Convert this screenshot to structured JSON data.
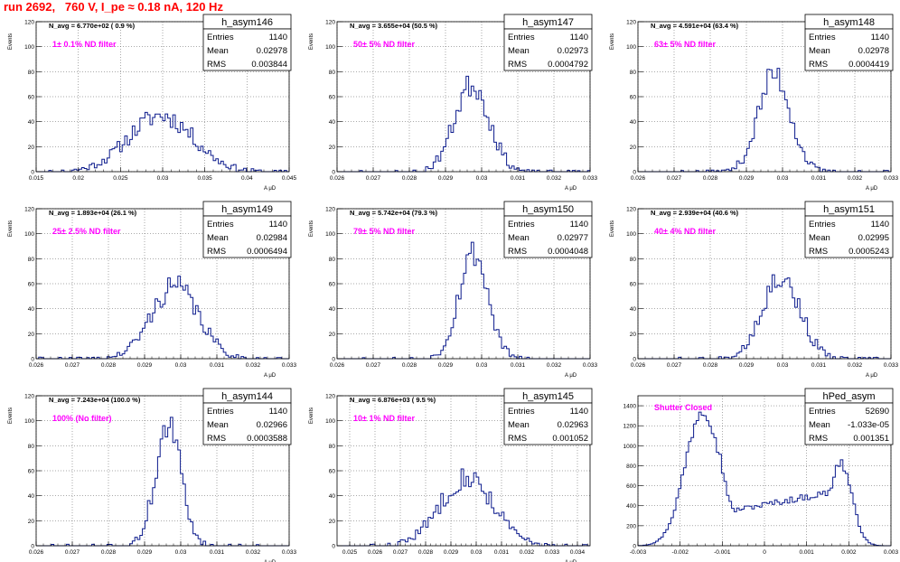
{
  "page_title": "run 2692,   760 V, I_pe ≈ 0.18 nA, 120 Hz",
  "colors": {
    "histogram": "#0b1a8c",
    "annotation": "#ff00ff",
    "grid": "#000000"
  },
  "chart_data": [
    {
      "type": "histogram",
      "title": "h_asym146",
      "ylabel": "Events",
      "xlabel": "A μD",
      "stats": {
        "Entries": "1140",
        "Mean": "0.02978",
        "RMS": "0.003844"
      },
      "navg_label": "N_avg = 6.770e+02 ( 0.9 %)",
      "filter_label": "1± 0.1% ND filter",
      "xlim": [
        0.015,
        0.045
      ],
      "ylim": [
        0,
        120
      ],
      "xticks": [
        "0.015",
        "0.02",
        "0.025",
        "0.03",
        "0.035",
        "0.04",
        "0.045"
      ],
      "yticks": [
        "0",
        "20",
        "40",
        "60",
        "80",
        "100",
        "120"
      ],
      "mean": 0.02978,
      "rms": 0.003844,
      "peak": 45,
      "shape": "gauss",
      "seed": 11
    },
    {
      "type": "histogram",
      "title": "h_asym147",
      "ylabel": "Events",
      "xlabel": "A μD",
      "stats": {
        "Entries": "1140",
        "Mean": "0.02973",
        "RMS": "0.0004792"
      },
      "navg_label": "N_avg = 3.655e+04 (50.5 %)",
      "filter_label": "50± 5% ND filter",
      "xlim": [
        0.026,
        0.033
      ],
      "ylim": [
        0,
        120
      ],
      "xticks": [
        "0.026",
        "0.027",
        "0.028",
        "0.029",
        "0.03",
        "0.031",
        "0.032",
        "0.033"
      ],
      "yticks": [
        "0",
        "20",
        "40",
        "60",
        "80",
        "100",
        "120"
      ],
      "mean": 0.02973,
      "rms": 0.0004792,
      "peak": 70,
      "shape": "gauss",
      "seed": 23
    },
    {
      "type": "histogram",
      "title": "h_asym148",
      "ylabel": "Events",
      "xlabel": "A μD",
      "stats": {
        "Entries": "1140",
        "Mean": "0.02978",
        "RMS": "0.0004419"
      },
      "navg_label": "N_avg = 4.591e+04 (63.4 %)",
      "filter_label": "63± 5% ND filter",
      "xlim": [
        0.026,
        0.033
      ],
      "ylim": [
        0,
        120
      ],
      "xticks": [
        "0.026",
        "0.027",
        "0.028",
        "0.029",
        "0.03",
        "0.031",
        "0.032",
        "0.033"
      ],
      "yticks": [
        "0",
        "20",
        "40",
        "60",
        "80",
        "100",
        "120"
      ],
      "mean": 0.02978,
      "rms": 0.0004419,
      "peak": 78,
      "shape": "gauss",
      "seed": 37
    },
    {
      "type": "histogram",
      "title": "h_asym149",
      "ylabel": "Events",
      "xlabel": "A μD",
      "stats": {
        "Entries": "1140",
        "Mean": "0.02984",
        "RMS": "0.0006494"
      },
      "navg_label": "N_avg = 1.893e+04 (26.1 %)",
      "filter_label": "25± 2.5% ND filter",
      "xlim": [
        0.026,
        0.033
      ],
      "ylim": [
        0,
        120
      ],
      "xticks": [
        "0.026",
        "0.027",
        "0.028",
        "0.029",
        "0.03",
        "0.031",
        "0.032",
        "0.033"
      ],
      "yticks": [
        "0",
        "20",
        "40",
        "60",
        "80",
        "100",
        "120"
      ],
      "mean": 0.02984,
      "rms": 0.0006494,
      "peak": 58,
      "shape": "gauss",
      "seed": 41
    },
    {
      "type": "histogram",
      "title": "h_asym150",
      "ylabel": "Events",
      "xlabel": "A μD",
      "stats": {
        "Entries": "1140",
        "Mean": "0.02977",
        "RMS": "0.0004048"
      },
      "navg_label": "N_avg = 5.742e+04 (79.3 %)",
      "filter_label": "79± 5% ND filter",
      "xlim": [
        0.026,
        0.033
      ],
      "ylim": [
        0,
        120
      ],
      "xticks": [
        "0.026",
        "0.027",
        "0.028",
        "0.029",
        "0.03",
        "0.031",
        "0.032",
        "0.033"
      ],
      "yticks": [
        "0",
        "20",
        "40",
        "60",
        "80",
        "100",
        "120"
      ],
      "mean": 0.02977,
      "rms": 0.0004048,
      "peak": 85,
      "shape": "gauss",
      "seed": 53
    },
    {
      "type": "histogram",
      "title": "h_asym151",
      "ylabel": "Events",
      "xlabel": "A μD",
      "stats": {
        "Entries": "1140",
        "Mean": "0.02995",
        "RMS": "0.0005243"
      },
      "navg_label": "N_avg = 2.939e+04 (40.6 %)",
      "filter_label": "40± 4% ND filter",
      "xlim": [
        0.026,
        0.033
      ],
      "ylim": [
        0,
        120
      ],
      "xticks": [
        "0.026",
        "0.027",
        "0.028",
        "0.029",
        "0.03",
        "0.031",
        "0.032",
        "0.033"
      ],
      "yticks": [
        "0",
        "20",
        "40",
        "60",
        "80",
        "100",
        "120"
      ],
      "mean": 0.02995,
      "rms": 0.0005243,
      "peak": 66,
      "shape": "gauss",
      "seed": 67
    },
    {
      "type": "histogram",
      "title": "h_asym144",
      "ylabel": "Events",
      "xlabel": "A μD",
      "stats": {
        "Entries": "1140",
        "Mean": "0.02966",
        "RMS": "0.0003588"
      },
      "navg_label": "N_avg = 7.243e+04 (100.0 %)",
      "filter_label": "100% (No filter)",
      "xlim": [
        0.026,
        0.033
      ],
      "ylim": [
        0,
        120
      ],
      "xticks": [
        "0.026",
        "0.027",
        "0.028",
        "0.029",
        "0.03",
        "0.031",
        "0.032",
        "0.033"
      ],
      "yticks": [
        "0",
        "20",
        "40",
        "60",
        "80",
        "100",
        "120"
      ],
      "mean": 0.02966,
      "rms": 0.0003588,
      "peak": 95,
      "shape": "gauss",
      "seed": 71
    },
    {
      "type": "histogram",
      "title": "h_asym145",
      "ylabel": "Events",
      "xlabel": "A μD",
      "stats": {
        "Entries": "1140",
        "Mean": "0.02963",
        "RMS": "0.001052"
      },
      "navg_label": "N_avg = 6.876e+03 ( 9.5 %)",
      "filter_label": "10± 1% ND filter",
      "xlim": [
        0.0245,
        0.0345
      ],
      "ylim": [
        0,
        120
      ],
      "xticks": [
        "0.025",
        "0.026",
        "0.027",
        "0.028",
        "0.029",
        "0.03",
        "0.031",
        "0.032",
        "0.033",
        "0.034"
      ],
      "yticks": [
        "0",
        "20",
        "40",
        "60",
        "80",
        "100",
        "120"
      ],
      "mean": 0.02963,
      "rms": 0.001052,
      "peak": 55,
      "shape": "gauss",
      "seed": 83
    },
    {
      "type": "histogram",
      "title": "hPed_asym",
      "ylabel": "",
      "xlabel": "",
      "stats": {
        "Entries": "52690",
        "Mean": "-1.033e-05",
        "RMS": "0.001351"
      },
      "navg_label": "",
      "filter_label": "Shutter Closed",
      "xlim": [
        -0.003,
        0.003
      ],
      "ylim": [
        0,
        1500
      ],
      "xticks": [
        "-0.003",
        "-0.002",
        "-0.001",
        "0",
        "0.001",
        "0.002",
        "0.003"
      ],
      "yticks": [
        "0",
        "200",
        "400",
        "600",
        "800",
        "1000",
        "1200",
        "1400"
      ],
      "shape": "bimodal",
      "modes": [
        {
          "mu": -0.00145,
          "sigma": 0.00042,
          "height": 1380
        },
        {
          "mu": 0.0018,
          "sigma": 0.00027,
          "height": 830
        }
      ],
      "floor": 300,
      "seed": 97
    }
  ]
}
